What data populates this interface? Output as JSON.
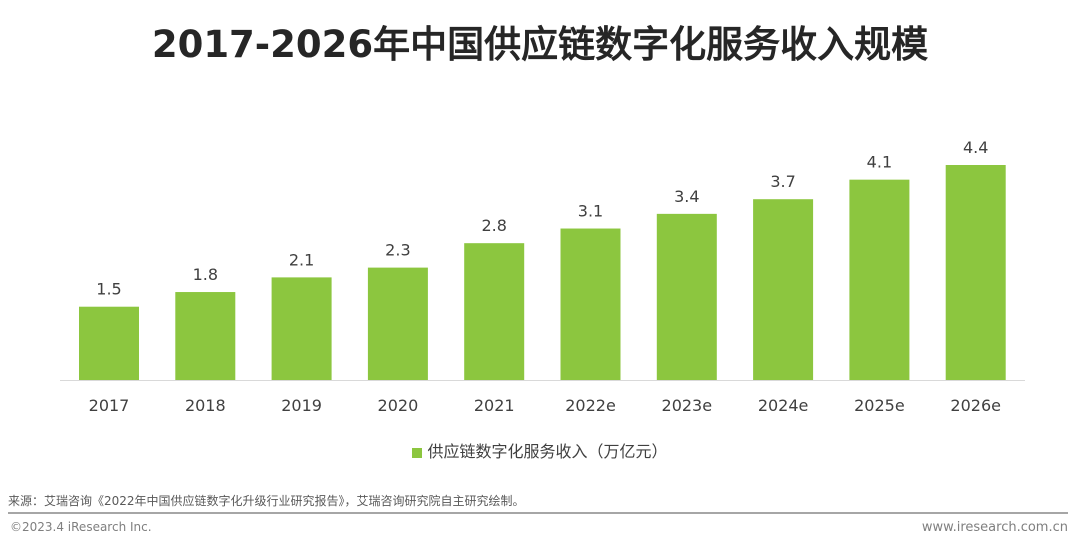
{
  "chart_data": {
    "type": "bar",
    "title": "2017-2026年中国供应链数字化服务收入规模",
    "categories": [
      "2017",
      "2018",
      "2019",
      "2020",
      "2021",
      "2022e",
      "2023e",
      "2024e",
      "2025e",
      "2026e"
    ],
    "series": [
      {
        "name": "供应链数字化服务收入（万亿元）",
        "values": [
          1.5,
          1.8,
          2.1,
          2.3,
          2.8,
          3.1,
          3.4,
          3.7,
          4.1,
          4.4
        ],
        "color": "#8cc63f"
      }
    ],
    "ylim": [
      0,
      4.4
    ],
    "grid": false,
    "legend": "bottom",
    "xlabel": "",
    "ylabel": ""
  },
  "footer": {
    "source": "来源：艾瑞咨询《2022年中国供应链数字化升级行业研究报告》，艾瑞咨询研究院自主研究绘制。",
    "copyright": "©2023.4 iResearch Inc.",
    "url": "www.iresearch.com.cn"
  }
}
